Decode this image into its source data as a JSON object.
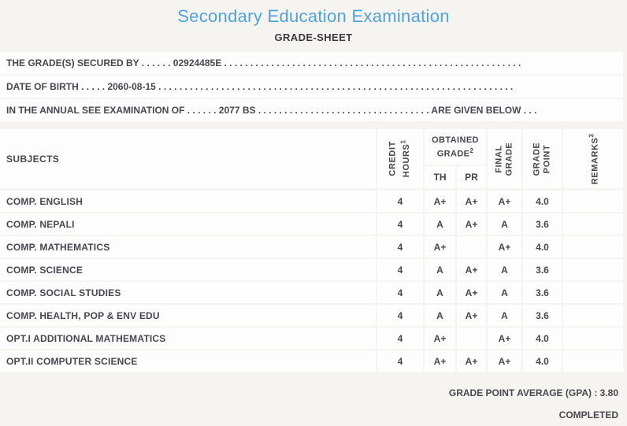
{
  "title": "Secondary Education Examination",
  "subtitle": "GRADE-SHEET",
  "info_lines": [
    "THE GRADE(S) SECURED BY . . . . . . 02924485E . . . . . . . . . . . . . . . . . . . . . . . . . . . . . . . . . . . . . . . . . . . . . . . . . . . . . . . . .",
    "DATE OF BIRTH . . . . . 2060-08-15 . . . . . . . . . . . . . . . . . . . . . . . . . . . . . . . . . . . . . . . . . . . . . . . . . . . . . . . . . . . . . . . . . . . .",
    "IN THE ANNUAL SEE EXAMINATION OF . . . . . . 2077 BS . . . . . . . . . . . . . . . . . . . . . . . . . . . . . . . . . ARE GIVEN BELOW . . ."
  ],
  "student": {
    "symbol_number": "02924485E",
    "date_of_birth": "2060-08-15",
    "examination_year": "2077 BS"
  },
  "table": {
    "header": {
      "subjects": "SUBJECTS",
      "credit_hours": {
        "line1": "CREDIT",
        "line2": "HOURS",
        "sup": "1"
      },
      "obtained_grade": {
        "line1": "OBTAINED",
        "line2": "GRADE",
        "sup": "2"
      },
      "th": "TH",
      "pr": "PR",
      "final_grade": {
        "line1": "FINAL",
        "line2": "GRADE"
      },
      "grade_point": {
        "line1": "GRADE",
        "line2": "POINT"
      },
      "remarks": {
        "label": "REMARKS",
        "sup": "3"
      }
    },
    "rows": [
      {
        "subject": "COMP. ENGLISH",
        "credit": "4",
        "th": "A+",
        "pr": "A+",
        "final": "A+",
        "gp": "4.0",
        "remarks": ""
      },
      {
        "subject": "COMP. NEPALI",
        "credit": "4",
        "th": "A",
        "pr": "A+",
        "final": "A",
        "gp": "3.6",
        "remarks": ""
      },
      {
        "subject": "COMP. MATHEMATICS",
        "credit": "4",
        "th": "A+",
        "pr": "",
        "final": "A+",
        "gp": "4.0",
        "remarks": ""
      },
      {
        "subject": "COMP. SCIENCE",
        "credit": "4",
        "th": "A",
        "pr": "A+",
        "final": "A",
        "gp": "3.6",
        "remarks": ""
      },
      {
        "subject": "COMP. SOCIAL STUDIES",
        "credit": "4",
        "th": "A",
        "pr": "A+",
        "final": "A",
        "gp": "3.6",
        "remarks": ""
      },
      {
        "subject": "COMP. HEALTH, POP & ENV EDU",
        "credit": "4",
        "th": "A",
        "pr": "A+",
        "final": "A",
        "gp": "3.6",
        "remarks": ""
      },
      {
        "subject": "OPT.I ADDITIONAL MATHEMATICS",
        "credit": "4",
        "th": "A+",
        "pr": "",
        "final": "A+",
        "gp": "4.0",
        "remarks": ""
      },
      {
        "subject": "OPT.II COMPUTER SCIENCE",
        "credit": "4",
        "th": "A+",
        "pr": "A+",
        "final": "A+",
        "gp": "4.0",
        "remarks": ""
      }
    ]
  },
  "footer": {
    "gpa_line": "GRADE POINT AVERAGE (GPA) : 3.80",
    "gpa_value": "3.80",
    "status": "COMPLETED"
  },
  "colors": {
    "title_blue": "#4FA3DA",
    "text": "#47474F",
    "page_bg": "#F6F4F0",
    "cell_bg": "#FDFDFD"
  }
}
